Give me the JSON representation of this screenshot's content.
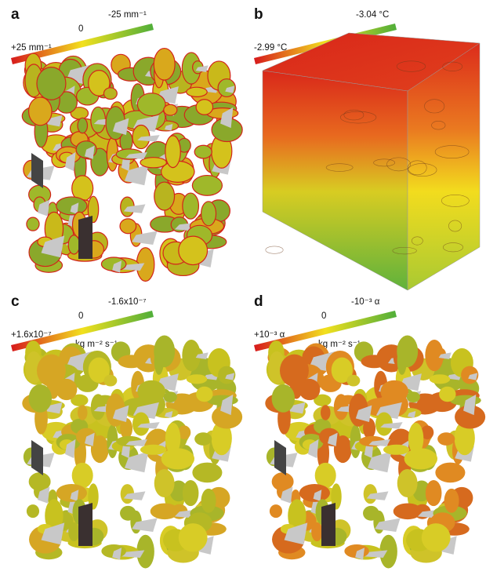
{
  "panels": [
    {
      "label": "a",
      "colorbar": {
        "max": "+25 mm⁻¹",
        "mid": "0",
        "min": "-25 mm⁻¹"
      }
    },
    {
      "label": "b",
      "colorbar": {
        "max": "-2.99 °C",
        "min": "-3.04 °C"
      }
    },
    {
      "label": "c",
      "colorbar": {
        "max": "+1.6x10⁻⁷",
        "mid": "0",
        "min": "-1.6x10⁻⁷",
        "unit": "kg m⁻² s⁻¹"
      }
    },
    {
      "label": "d",
      "colorbar": {
        "max": "+10⁻³ α",
        "mid": "0",
        "min": "-10⁻³ α",
        "unit": "kg m⁻² s⁻¹"
      }
    }
  ]
}
